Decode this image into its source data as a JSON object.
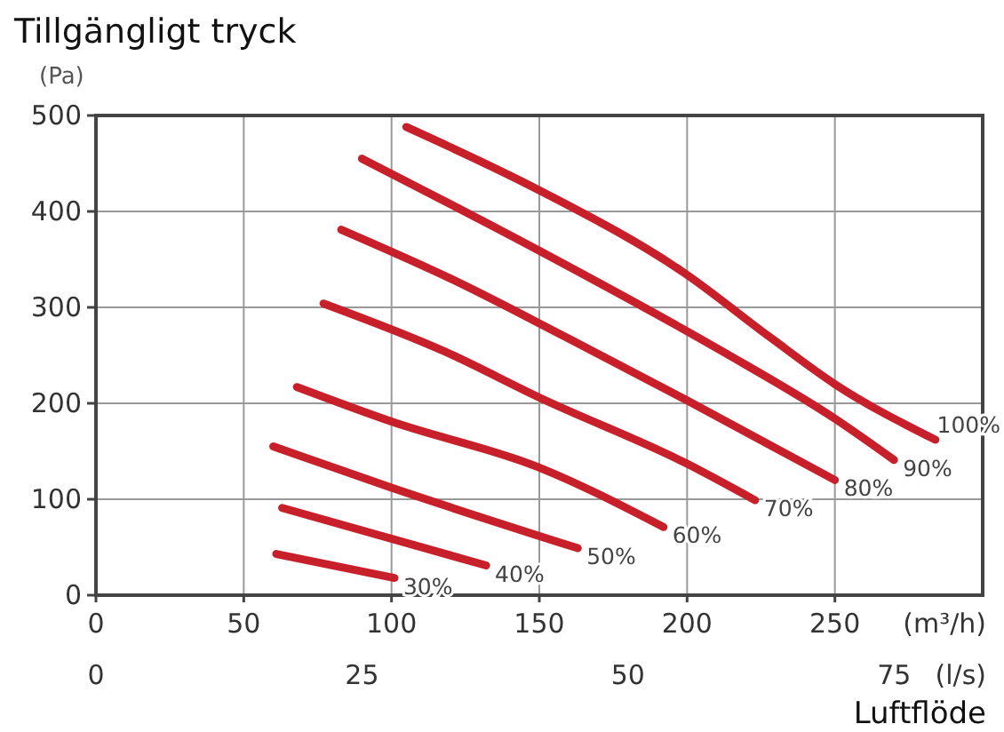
{
  "chart_data": {
    "type": "line",
    "title": "Tillgängligt tryck",
    "ylabel": "(Pa)",
    "xlabel": "(m³/h)",
    "x2label": "(l/s)",
    "annotations": [
      "Luftflöde"
    ],
    "xlim": [
      0,
      300
    ],
    "xticks": [
      0,
      50,
      100,
      150,
      200,
      250
    ],
    "x2lim": [
      0,
      83.33
    ],
    "x2ticks": [
      0,
      25,
      50,
      75
    ],
    "ylim": [
      0,
      500
    ],
    "yticks": [
      0,
      100,
      200,
      300,
      400,
      500
    ],
    "grid": true,
    "marker": "none",
    "line_style": "solid",
    "series": [
      {
        "name": "30%",
        "color": "#c8202a",
        "x": [
          61,
          101
        ],
        "values": [
          43,
          18
        ]
      },
      {
        "name": "40%",
        "color": "#c8202a",
        "x": [
          63,
          132
        ],
        "values": [
          91,
          31
        ]
      },
      {
        "name": "50%",
        "color": "#c8202a",
        "x": [
          60,
          100,
          163
        ],
        "values": [
          155,
          112,
          49
        ]
      },
      {
        "name": "60%",
        "color": "#c8202a",
        "x": [
          68,
          100,
          150,
          192
        ],
        "values": [
          217,
          181,
          133,
          71
        ]
      },
      {
        "name": "70%",
        "color": "#c8202a",
        "x": [
          77,
          118,
          150,
          200,
          223
        ],
        "values": [
          304,
          254,
          206,
          137,
          99
        ]
      },
      {
        "name": "80%",
        "color": "#c8202a",
        "x": [
          83,
          120,
          159,
          200,
          250
        ],
        "values": [
          381,
          330,
          269,
          203,
          120
        ]
      },
      {
        "name": "90%",
        "color": "#c8202a",
        "x": [
          90,
          150,
          212,
          250,
          270
        ],
        "values": [
          455,
          359,
          254,
          184,
          141
        ]
      },
      {
        "name": "100%",
        "color": "#c8202a",
        "x": [
          105,
          150,
          199,
          228,
          250,
          284
        ],
        "values": [
          488,
          422,
          336,
          269,
          220,
          162
        ]
      }
    ]
  }
}
